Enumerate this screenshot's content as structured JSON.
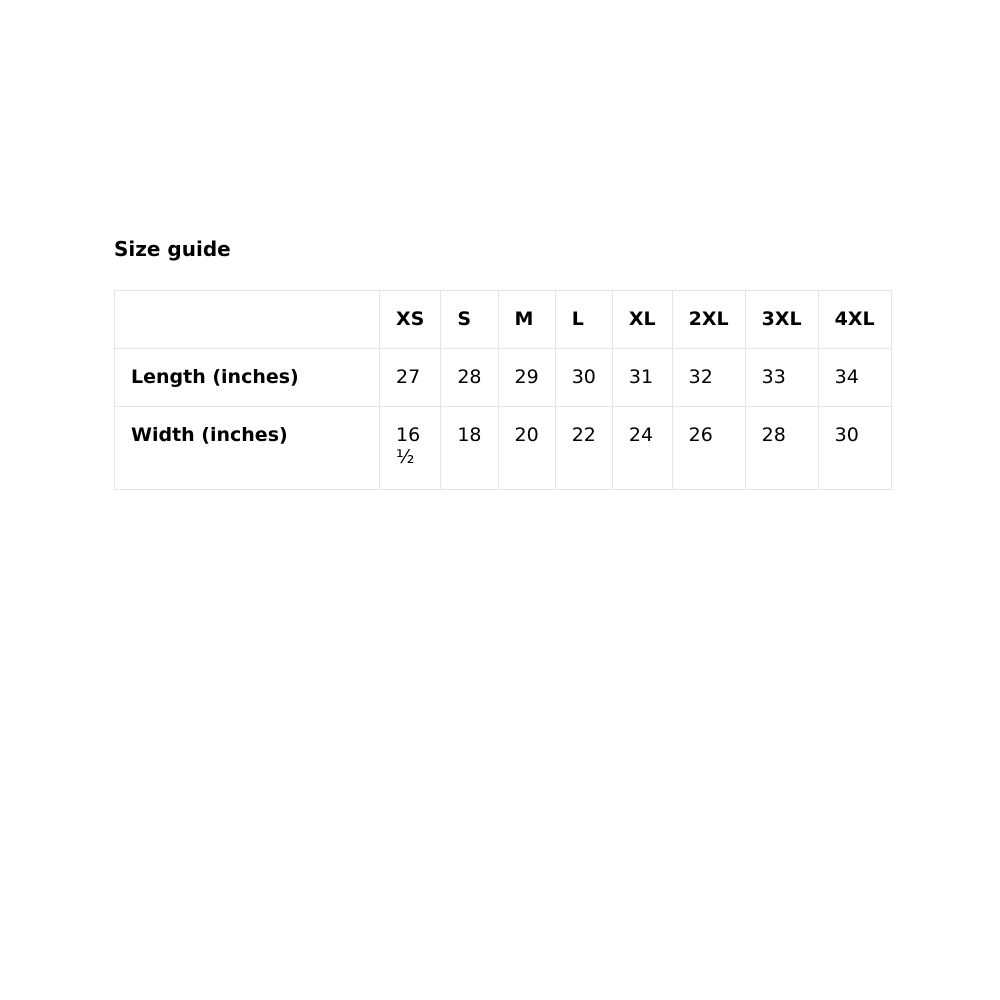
{
  "title": "Size guide",
  "table": {
    "headers": [
      "",
      "XS",
      "S",
      "M",
      "L",
      "XL",
      "2XL",
      "3XL",
      "4XL"
    ],
    "rows": [
      {
        "label": "Length (inches)",
        "values": [
          "27",
          "28",
          "29",
          "30",
          "31",
          "32",
          "33",
          "34"
        ]
      },
      {
        "label": "Width (inches)",
        "values": [
          "16 ½",
          "18",
          "20",
          "22",
          "24",
          "26",
          "28",
          "30"
        ]
      }
    ]
  }
}
